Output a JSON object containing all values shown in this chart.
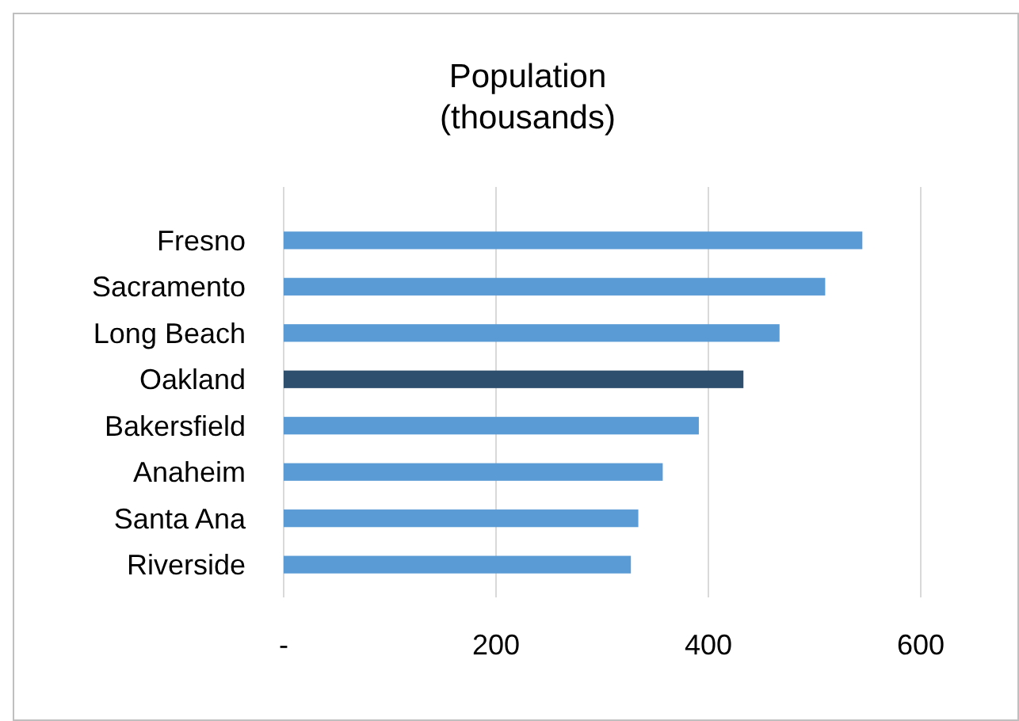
{
  "chart_data": {
    "type": "bar",
    "orientation": "horizontal",
    "title": "Population\n(thousands)",
    "categories": [
      "Fresno",
      "Sacramento",
      "Long Beach",
      "Oakland",
      "Bakersfield",
      "Anaheim",
      "Santa Ana",
      "Riverside"
    ],
    "values": [
      545,
      510,
      467,
      433,
      391,
      357,
      334,
      327
    ],
    "colors": [
      "#5b9bd5",
      "#5b9bd5",
      "#5b9bd5",
      "#2f4f6f",
      "#5b9bd5",
      "#5b9bd5",
      "#5b9bd5",
      "#5b9bd5"
    ],
    "xlim": [
      0,
      600
    ],
    "xticks": [
      {
        "value": 0,
        "label": "-"
      },
      200,
      400,
      600
    ],
    "grid": "x"
  }
}
